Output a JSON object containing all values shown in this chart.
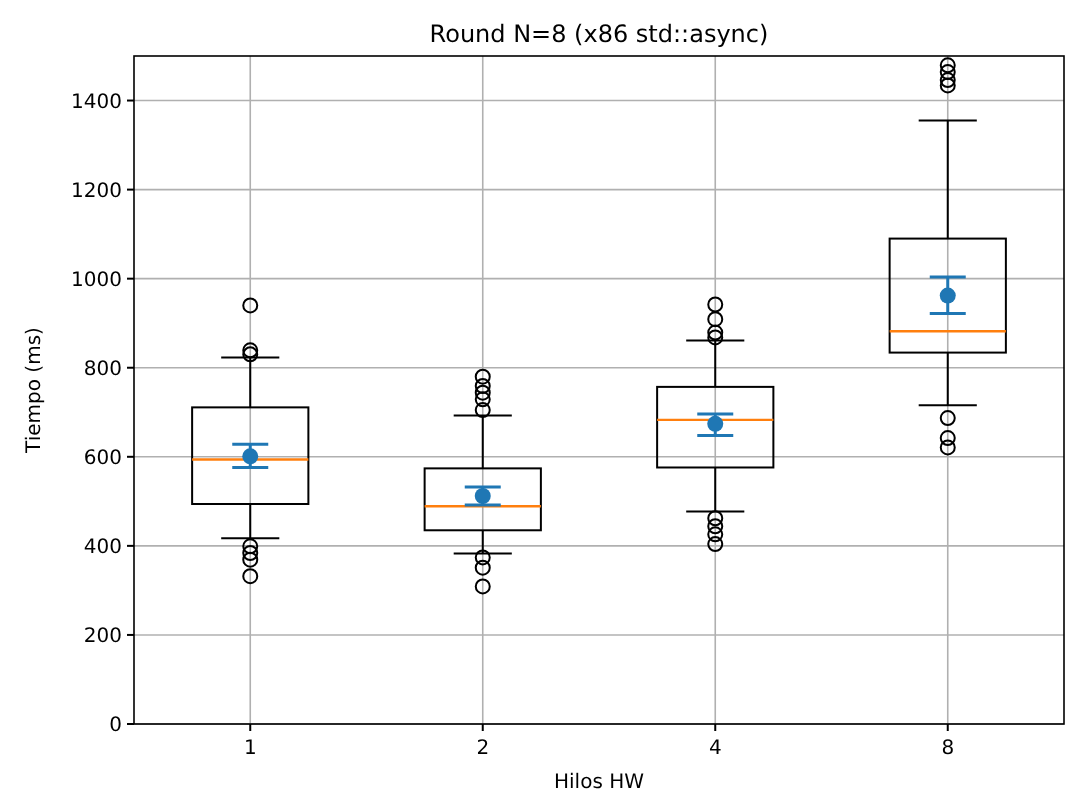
{
  "chart_data": {
    "type": "box",
    "title": "Round N=8 (x86 std::async)",
    "xlabel": "Hilos HW",
    "ylabel": "Tiempo (ms)",
    "categories": [
      "1",
      "2",
      "4",
      "8"
    ],
    "ylim": [
      0,
      1500
    ],
    "yticks": [
      0,
      200,
      400,
      600,
      800,
      1000,
      1200,
      1400
    ],
    "grid": true,
    "boxes": [
      {
        "low": 417,
        "q1": 494,
        "median": 594,
        "q3": 711,
        "high": 823,
        "outliers": [
          940,
          839,
          830,
          399,
          384,
          369,
          332
        ]
      },
      {
        "low": 383,
        "q1": 435,
        "median": 489,
        "q3": 574,
        "high": 693,
        "outliers": [
          780,
          759,
          744,
          729,
          705,
          374,
          351,
          309
        ]
      },
      {
        "low": 477,
        "q1": 576,
        "median": 683,
        "q3": 757,
        "high": 861,
        "outliers": [
          942,
          909,
          879,
          868,
          462,
          444,
          426,
          404
        ]
      },
      {
        "low": 716,
        "q1": 834,
        "median": 882,
        "q3": 1090,
        "high": 1355,
        "outliers": [
          1479,
          1464,
          1446,
          1434,
          687,
          642,
          621
        ]
      }
    ],
    "series": [
      {
        "type": "scatter",
        "color": "#1f77b4",
        "x": [
          "1",
          "2",
          "4",
          "8"
        ],
        "values": [
          601,
          512,
          674,
          962
        ],
        "errors": [
          [
            576,
            628
          ],
          [
            492,
            532
          ],
          [
            648,
            696
          ],
          [
            922,
            1004
          ]
        ],
        "marker": "circle"
      }
    ]
  }
}
